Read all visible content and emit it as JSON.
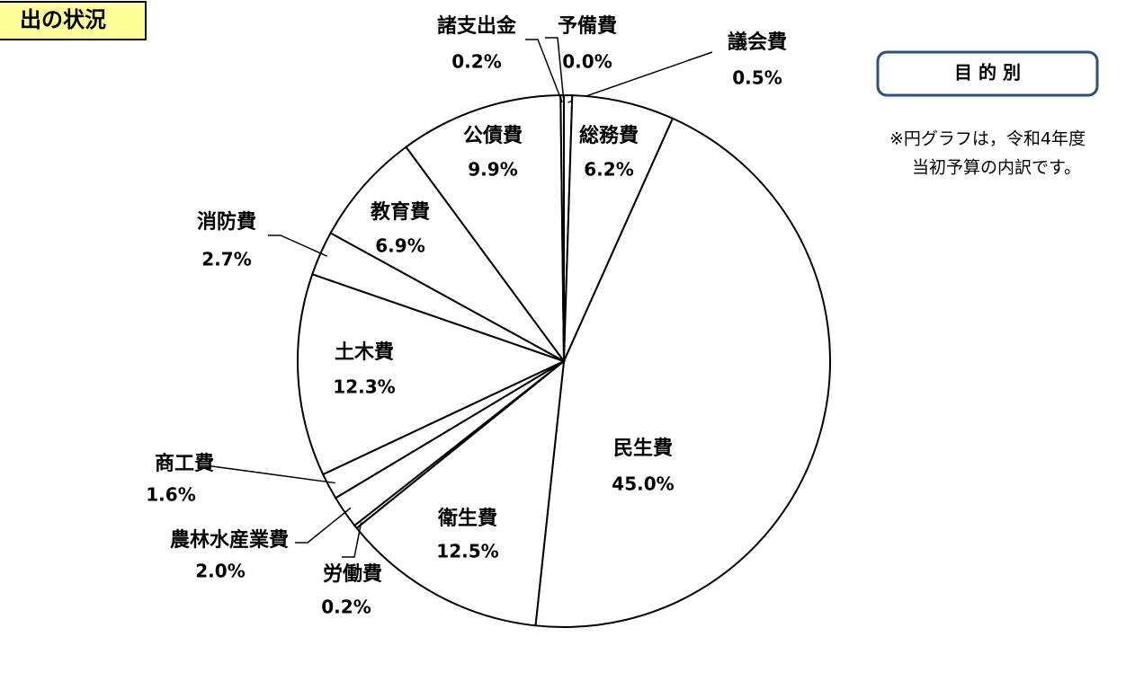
{
  "header": {
    "title": "出の状況",
    "badge": "目 的 別",
    "note": [
      "※円グラフは，令和4年度",
      "当初予算の内訳です。"
    ]
  },
  "chart_data": {
    "type": "pie",
    "color": "#ffffff",
    "stroke": "#000000",
    "categories": [
      "議会費",
      "総務費",
      "民生費",
      "衛生費",
      "労働費",
      "農林水産業費",
      "商工費",
      "土木費",
      "消防費",
      "教育費",
      "公債費",
      "諸支出金",
      "予備費"
    ],
    "values": [
      0.5,
      6.2,
      45.0,
      12.5,
      0.2,
      2.0,
      1.6,
      12.3,
      2.7,
      6.9,
      9.9,
      0.2,
      0.0
    ],
    "value_labels": [
      "0.5%",
      "6.2%",
      "45.0%",
      "12.5%",
      "0.2%",
      "2.0%",
      "1.6%",
      "12.3%",
      "2.7%",
      "6.9%",
      "9.9%",
      "0.2%",
      "0.0%"
    ]
  }
}
